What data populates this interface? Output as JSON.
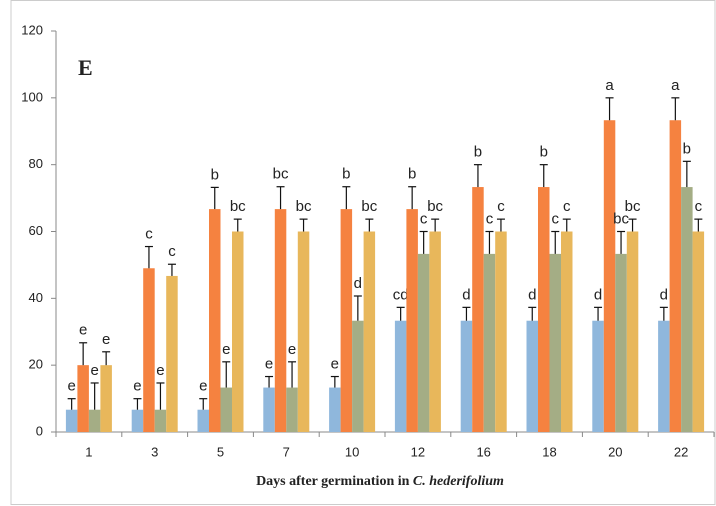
{
  "chart_data": {
    "type": "bar",
    "title": "E",
    "xlabel": "Days after germination  in",
    "xlabel_species": "C. hederifolium",
    "categories": [
      "1",
      "3",
      "5",
      "7",
      "10",
      "12",
      "16",
      "18",
      "20",
      "22"
    ],
    "series": [
      {
        "color": "#8fb7dc",
        "values": [
          6.67,
          6.67,
          6.67,
          13.3,
          13.3,
          33.3,
          33.3,
          33.3,
          33.3,
          33.3
        ],
        "errors": [
          3.3,
          3.3,
          3.3,
          3.3,
          3.3,
          4,
          4,
          4,
          4,
          4
        ],
        "labels": [
          "e",
          "e",
          "e",
          "e",
          "e",
          "cd",
          "d",
          "d",
          "d",
          "d"
        ]
      },
      {
        "color": "#f58240",
        "values": [
          20,
          49,
          66.7,
          66.7,
          66.7,
          66.7,
          73.3,
          73.3,
          93.3,
          93.3
        ],
        "errors": [
          6.7,
          6.5,
          6.5,
          6.7,
          6.7,
          6.7,
          6.7,
          6.7,
          6.7,
          6.7
        ],
        "labels": [
          "e",
          "c",
          "b",
          "bc",
          "b",
          "b",
          "b",
          "b",
          "a",
          "a"
        ]
      },
      {
        "color": "#a4ad85",
        "values": [
          6.67,
          6.67,
          13.3,
          13.3,
          33.3,
          53.3,
          53.3,
          53.3,
          53.3,
          73.3
        ],
        "errors": [
          8,
          8,
          7.7,
          7.7,
          7.4,
          6.7,
          6.7,
          6.7,
          6.7,
          7.7
        ],
        "labels": [
          "e",
          "e",
          "e",
          "e",
          "d",
          "c",
          "c",
          "c",
          "bc",
          "b"
        ]
      },
      {
        "color": "#e8b75b",
        "values": [
          20,
          46.7,
          60,
          60,
          60,
          60,
          60,
          60,
          60,
          60
        ],
        "errors": [
          4,
          3.5,
          3.7,
          3.7,
          3.7,
          3.7,
          3.7,
          3.7,
          3.7,
          3.7
        ],
        "labels": [
          "e",
          "c",
          "bc",
          "bc",
          "bc",
          "bc",
          "c",
          "c",
          "bc",
          "c"
        ]
      }
    ],
    "ylim": [
      0,
      120
    ],
    "yticks": [
      0,
      20,
      40,
      60,
      80,
      100,
      120
    ],
    "grid": false
  }
}
